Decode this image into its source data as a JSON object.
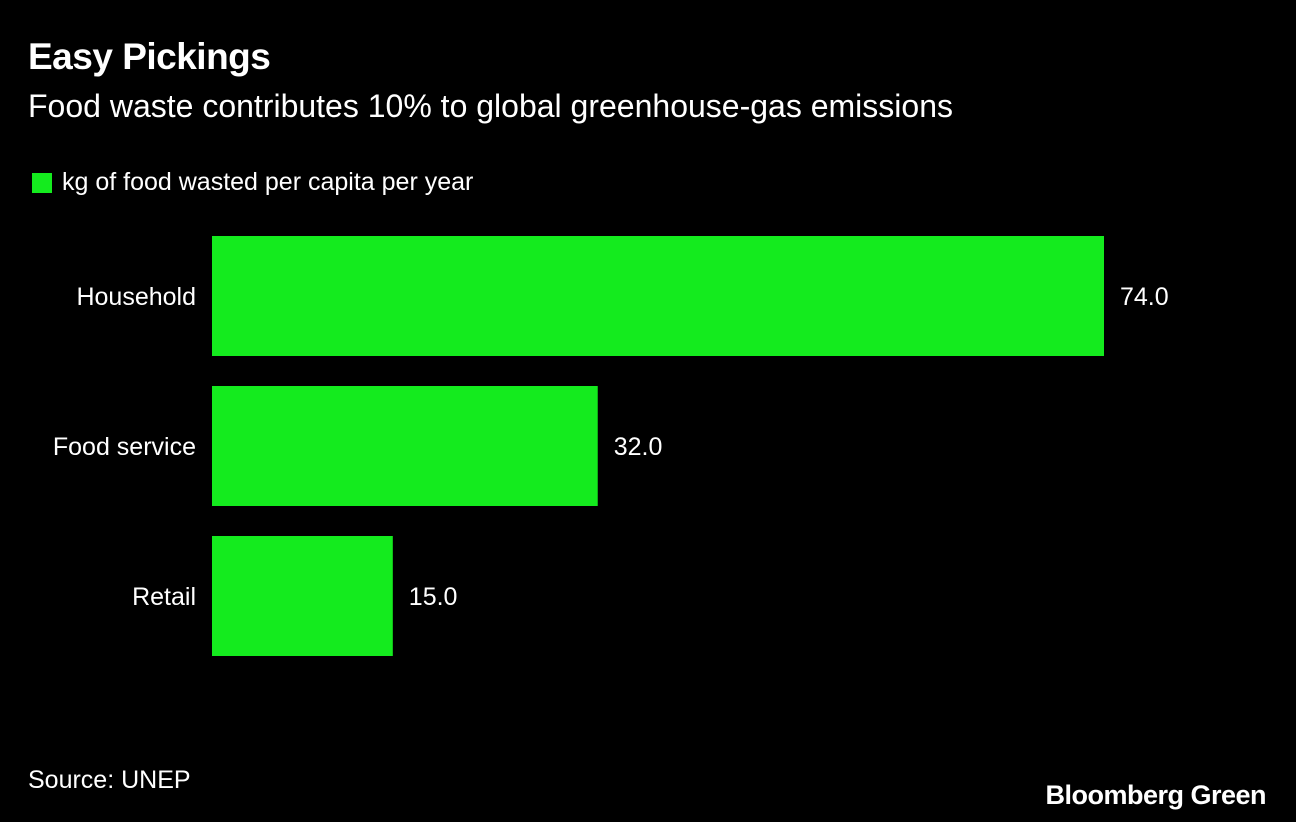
{
  "title": "Easy Pickings",
  "subtitle": "Food waste contributes 10% to global greenhouse-gas emissions",
  "source": "Source: UNEP",
  "logo": "Bloomberg Green",
  "chart_data": {
    "type": "bar",
    "orientation": "horizontal",
    "categories": [
      "Household",
      "Food service",
      "Retail"
    ],
    "series": [
      {
        "name": "kg of food wasted per capita per year",
        "values": [
          74.0,
          32.0,
          15.0
        ],
        "color": "#14eb1e"
      }
    ],
    "data_labels": [
      "74.0",
      "32.0",
      "15.0"
    ],
    "xlim": [
      0,
      74
    ],
    "grid": false,
    "legend": "top-left",
    "background": "#000000"
  }
}
